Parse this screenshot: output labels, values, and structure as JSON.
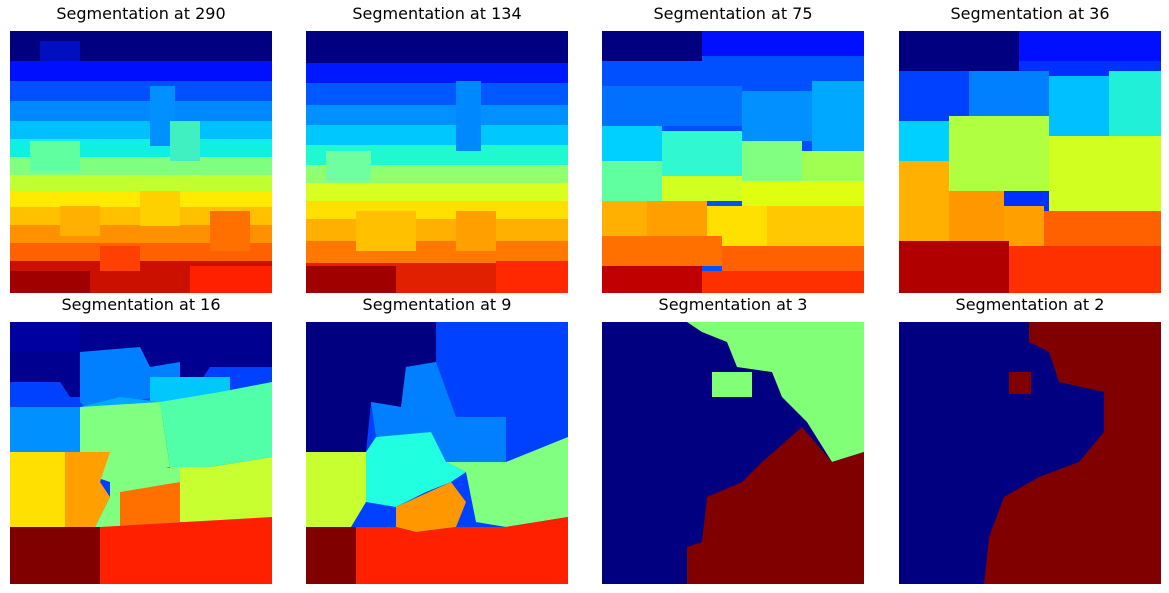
{
  "figure": {
    "panels": [
      {
        "title": "Segmentation at 290",
        "segments": 290
      },
      {
        "title": "Segmentation at 134",
        "segments": 134
      },
      {
        "title": "Segmentation at 75",
        "segments": 75
      },
      {
        "title": "Segmentation at 36",
        "segments": 36
      },
      {
        "title": "Segmentation at 16",
        "segments": 16
      },
      {
        "title": "Segmentation at 9",
        "segments": 9
      },
      {
        "title": "Segmentation at 3",
        "segments": 3
      },
      {
        "title": "Segmentation at 2",
        "segments": 2
      }
    ],
    "colormap": "jet",
    "colors": {
      "dark_red": "#800000",
      "red": "#ff2000",
      "orange_red": "#ff5500",
      "orange": "#ff9a00",
      "gold": "#ffc800",
      "yellow": "#ffe600",
      "yellow_green": "#caff2d",
      "green": "#80ff77",
      "aqua": "#1affdd",
      "cyan": "#00d8ff",
      "sky": "#0088ff",
      "blue": "#0040ff",
      "dark_blue": "#000080"
    }
  }
}
